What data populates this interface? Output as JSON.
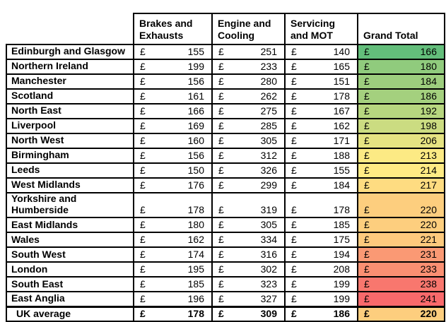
{
  "chart_data": {
    "type": "table",
    "title": "",
    "columns": [
      "",
      "Brakes and Exhausts",
      "Engine and Cooling",
      "Servicing and MOT",
      "Grand Total"
    ],
    "currency_symbol": "£",
    "grand_total_color_scale": {
      "min": {
        "value": 166,
        "color": "#63BE7B"
      },
      "mid": {
        "value": 214,
        "color": "#FFEB84"
      },
      "max": {
        "value": 241,
        "color": "#F8696B"
      }
    },
    "rows": [
      {
        "region": "Edinburgh and Glasgow",
        "values": [
          155,
          251,
          140,
          166
        ],
        "grand_total_color": "#63BE7B",
        "is_total": false
      },
      {
        "region": "Northern Ireland",
        "values": [
          199,
          233,
          165,
          180
        ],
        "grand_total_color": "#90CB7D",
        "is_total": false
      },
      {
        "region": "Manchester",
        "values": [
          156,
          280,
          151,
          184
        ],
        "grand_total_color": "#9DCE7E",
        "is_total": false
      },
      {
        "region": "Scotland",
        "values": [
          161,
          262,
          178,
          186
        ],
        "grand_total_color": "#A4D07E",
        "is_total": false
      },
      {
        "region": "North East",
        "values": [
          166,
          275,
          167,
          192
        ],
        "grand_total_color": "#B7D67F",
        "is_total": false
      },
      {
        "region": "Liverpool",
        "values": [
          169,
          285,
          162,
          198
        ],
        "grand_total_color": "#CBDC81",
        "is_total": false
      },
      {
        "region": "North West",
        "values": [
          160,
          305,
          171,
          206
        ],
        "grand_total_color": "#E5E382",
        "is_total": false
      },
      {
        "region": "Birmingham",
        "values": [
          156,
          312,
          188,
          213
        ],
        "grand_total_color": "#FCEA84",
        "is_total": false
      },
      {
        "region": "Leeds",
        "values": [
          150,
          326,
          155,
          214
        ],
        "grand_total_color": "#FFEB84",
        "is_total": false
      },
      {
        "region": "West Midlands",
        "values": [
          176,
          299,
          184,
          217
        ],
        "grand_total_color": "#FEDC81",
        "is_total": false
      },
      {
        "region": "Yorkshire and Humberside",
        "values": [
          178,
          319,
          178,
          220
        ],
        "grand_total_color": "#FDCE7E",
        "is_total": false
      },
      {
        "region": "East Midlands",
        "values": [
          180,
          305,
          185,
          220
        ],
        "grand_total_color": "#FDCE7E",
        "is_total": false
      },
      {
        "region": "Wales",
        "values": [
          162,
          334,
          175,
          221
        ],
        "grand_total_color": "#FDC97D",
        "is_total": false
      },
      {
        "region": "South West",
        "values": [
          174,
          316,
          194,
          231
        ],
        "grand_total_color": "#FA9974",
        "is_total": false
      },
      {
        "region": "London",
        "values": [
          195,
          302,
          208,
          233
        ],
        "grand_total_color": "#FA8F72",
        "is_total": false
      },
      {
        "region": "South East",
        "values": [
          185,
          323,
          199,
          238
        ],
        "grand_total_color": "#F8776E",
        "is_total": false
      },
      {
        "region": "East Anglia",
        "values": [
          196,
          327,
          199,
          241
        ],
        "grand_total_color": "#F8696B",
        "is_total": false
      },
      {
        "region": "UK average",
        "values": [
          178,
          309,
          186,
          220
        ],
        "grand_total_color": "#FDCE7E",
        "is_total": true
      }
    ]
  }
}
